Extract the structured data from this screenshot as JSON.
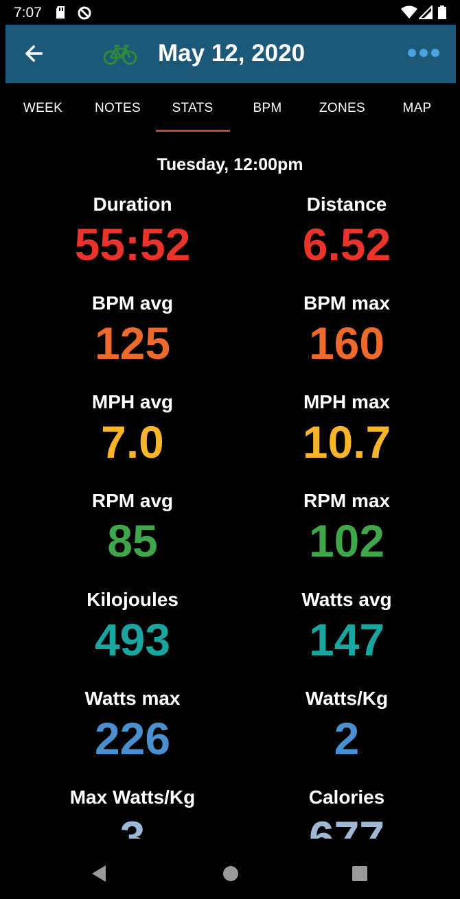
{
  "status_bar": {
    "time": "7:07"
  },
  "header": {
    "title": "May 12, 2020",
    "bike_icon_color": "#2e8b3a",
    "more_dots_color": "#4aa3df",
    "background": "#1c5878"
  },
  "tabs": [
    {
      "label": "WEEK"
    },
    {
      "label": "NOTES"
    },
    {
      "label": "STATS",
      "selected": true
    },
    {
      "label": "BPM"
    },
    {
      "label": "ZONES"
    },
    {
      "label": "MAP"
    }
  ],
  "subheading": "Tuesday, 12:00pm",
  "stats": [
    {
      "label": "Duration",
      "value": "55:52",
      "color": "#e8342a"
    },
    {
      "label": "Distance",
      "value": "6.52",
      "color": "#e8342a"
    },
    {
      "label": "BPM avg",
      "value": "125",
      "color": "#ee6a2c"
    },
    {
      "label": "BPM max",
      "value": "160",
      "color": "#ee6a2c"
    },
    {
      "label": "MPH avg",
      "value": "7.0",
      "color": "#f6b52a"
    },
    {
      "label": "MPH max",
      "value": "10.7",
      "color": "#f6b52a"
    },
    {
      "label": "RPM avg",
      "value": "85",
      "color": "#3fa64a"
    },
    {
      "label": "RPM max",
      "value": "102",
      "color": "#3fa64a"
    },
    {
      "label": "Kilojoules",
      "value": "493",
      "color": "#19a6a0"
    },
    {
      "label": "Watts avg",
      "value": "147",
      "color": "#19a6a0"
    },
    {
      "label": "Watts max",
      "value": "226",
      "color": "#4a8fd0"
    },
    {
      "label": "Watts/Kg",
      "value": "2",
      "color": "#4a8fd0"
    },
    {
      "label": "Max Watts/Kg",
      "value": "3",
      "color": "#9fb8d6"
    },
    {
      "label": "Calories",
      "value": "677",
      "color": "#9fb8d6"
    }
  ]
}
